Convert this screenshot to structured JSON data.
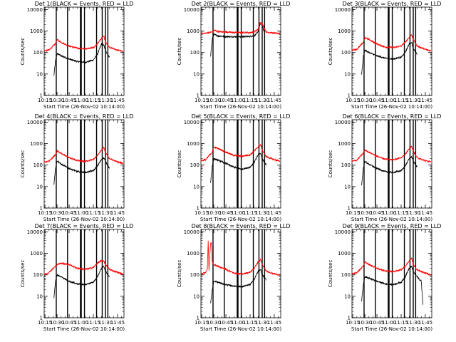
{
  "figure": {
    "xlabel": "Start Time (26-Nov-02 10:14:00)",
    "ylabel": "Counts/sec",
    "x_tick_labels": [
      "10:15",
      "10:30",
      "10:45",
      "11:00",
      "11:15",
      "11:30",
      "11:45"
    ],
    "y_tick_labels": [
      "1",
      "10",
      "100",
      "1000",
      "10000"
    ],
    "colors": {
      "events": "#000000",
      "lld": "#ff0000"
    }
  },
  "chart_data": [
    {
      "type": "line",
      "title": "Det 1(BLACK = Events, RED = LLD",
      "xlabel": "Start Time (26-Nov-02 10:14:00)",
      "ylabel": "Counts/sec",
      "x_range": [
        "10:14",
        "11:53"
      ],
      "ylim": [
        1,
        13000
      ],
      "yscale": "log",
      "series": [
        {
          "color": "#000000",
          "x": [
            "10:26",
            "10:28",
            "10:30",
            "10:35",
            "10:45",
            "10:55",
            "11:05",
            "11:15",
            "11:20",
            "11:25",
            "11:28",
            "11:30",
            "11:35"
          ],
          "values": [
            8,
            40,
            90,
            70,
            50,
            38,
            35,
            45,
            80,
            250,
            220,
            120,
            60
          ]
        },
        {
          "color": "#ff0000",
          "x": [
            "10:14",
            "10:20",
            "10:28",
            "10:30",
            "10:35",
            "10:45",
            "10:55",
            "11:05",
            "11:15",
            "11:20",
            "11:25",
            "11:28",
            "11:30",
            "11:35",
            "11:45",
            "11:52"
          ],
          "values": [
            120,
            130,
            250,
            400,
            300,
            200,
            160,
            150,
            170,
            250,
            450,
            600,
            300,
            170,
            130,
            110
          ]
        }
      ],
      "vertical_lines": [
        "10:29",
        "10:43",
        "10:59",
        "11:00",
        "11:04",
        "11:19",
        "11:26",
        "11:30",
        "11:33"
      ]
    },
    {
      "type": "line",
      "title": "Det 2(BLACK = Events, RED = LLD",
      "xlabel": "Start Time (26-Nov-02 10:14:00)",
      "ylabel": "Counts/sec",
      "x_range": [
        "10:14",
        "11:53"
      ],
      "ylim": [
        1,
        13000
      ],
      "yscale": "log",
      "series": [
        {
          "color": "#000000",
          "x": [
            "10:26",
            "10:28",
            "10:30",
            "10:35",
            "10:45",
            "10:55",
            "11:05",
            "11:15",
            "11:20",
            "11:25",
            "11:27",
            "11:30",
            "11:32"
          ],
          "values": [
            70,
            400,
            700,
            600,
            550,
            550,
            550,
            560,
            600,
            900,
            2000,
            2200,
            1000
          ]
        },
        {
          "color": "#ff0000",
          "x": [
            "10:14",
            "10:20",
            "10:28",
            "10:30",
            "10:35",
            "10:45",
            "10:55",
            "11:05",
            "11:15",
            "11:20",
            "11:25",
            "11:27",
            "11:30",
            "11:35",
            "11:45",
            "11:52"
          ],
          "values": [
            750,
            800,
            900,
            1100,
            950,
            900,
            850,
            850,
            850,
            900,
            1200,
            2400,
            2200,
            900,
            800,
            750
          ]
        }
      ],
      "vertical_lines": [
        "10:29",
        "10:43",
        "10:59",
        "11:00",
        "11:04",
        "11:19",
        "11:26",
        "11:30",
        "11:33"
      ]
    },
    {
      "type": "line",
      "title": "Det 3(BLACK = Events, RED = LLD",
      "xlabel": "Start Time (26-Nov-02 10:14:00)",
      "ylabel": "Counts/sec",
      "x_range": [
        "10:14",
        "11:53"
      ],
      "ylim": [
        1,
        13000
      ],
      "yscale": "log",
      "series": [
        {
          "color": "#000000",
          "x": [
            "10:26",
            "10:28",
            "10:30",
            "10:35",
            "10:45",
            "10:55",
            "11:05",
            "11:15",
            "11:20",
            "11:25",
            "11:28",
            "11:30",
            "11:35"
          ],
          "values": [
            10,
            60,
            130,
            100,
            70,
            55,
            50,
            60,
            100,
            250,
            300,
            150,
            80
          ]
        },
        {
          "color": "#ff0000",
          "x": [
            "10:14",
            "10:20",
            "10:28",
            "10:30",
            "10:35",
            "10:45",
            "10:55",
            "11:05",
            "11:15",
            "11:20",
            "11:25",
            "11:28",
            "11:30",
            "11:35",
            "11:45",
            "11:52"
          ],
          "values": [
            130,
            140,
            300,
            500,
            400,
            250,
            180,
            170,
            200,
            300,
            500,
            700,
            400,
            200,
            140,
            120
          ]
        }
      ],
      "vertical_lines": [
        "10:29",
        "10:43",
        "10:59",
        "11:00",
        "11:04",
        "11:19",
        "11:26",
        "11:30",
        "11:33"
      ]
    },
    {
      "type": "line",
      "title": "Det 4(BLACK = Events, RED = LLD",
      "xlabel": "Start Time (26-Nov-02 10:14:00)",
      "ylabel": "Counts/sec",
      "x_range": [
        "10:14",
        "11:53"
      ],
      "ylim": [
        1,
        13000
      ],
      "yscale": "log",
      "series": [
        {
          "color": "#000000",
          "x": [
            "10:26",
            "10:28",
            "10:30",
            "10:35",
            "10:45",
            "10:55",
            "11:05",
            "11:15",
            "11:20",
            "11:25",
            "11:28",
            "11:30",
            "11:35"
          ],
          "values": [
            12,
            70,
            160,
            110,
            70,
            50,
            45,
            55,
            90,
            180,
            220,
            150,
            70
          ]
        },
        {
          "color": "#ff0000",
          "x": [
            "10:14",
            "10:20",
            "10:28",
            "10:30",
            "10:35",
            "10:45",
            "10:55",
            "11:05",
            "11:15",
            "11:20",
            "11:25",
            "11:28",
            "11:30",
            "11:35",
            "11:45",
            "11:52"
          ],
          "values": [
            140,
            150,
            300,
            450,
            350,
            220,
            160,
            150,
            180,
            280,
            500,
            650,
            400,
            200,
            140,
            120
          ]
        }
      ],
      "vertical_lines": [
        "10:29",
        "10:43",
        "10:59",
        "11:00",
        "11:04",
        "11:19",
        "11:26",
        "11:30",
        "11:33"
      ]
    },
    {
      "type": "line",
      "title": "Det 5(BLACK = Events, RED = LLD",
      "xlabel": "Start Time (26-Nov-02 10:14:00)",
      "ylabel": "Counts/sec",
      "x_range": [
        "10:14",
        "11:53"
      ],
      "ylim": [
        1,
        13000
      ],
      "yscale": "log",
      "series": [
        {
          "color": "#000000",
          "x": [
            "10:26",
            "10:28",
            "10:30",
            "10:35",
            "10:45",
            "10:55",
            "11:05",
            "11:15",
            "11:20",
            "11:25",
            "11:28",
            "11:30",
            "11:35"
          ],
          "values": [
            15,
            90,
            200,
            170,
            120,
            80,
            65,
            80,
            130,
            300,
            350,
            200,
            100
          ]
        },
        {
          "color": "#ff0000",
          "x": [
            "10:14",
            "10:20",
            "10:28",
            "10:30",
            "10:35",
            "10:45",
            "10:55",
            "11:05",
            "11:15",
            "11:20",
            "11:25",
            "11:28",
            "11:30",
            "11:35",
            "11:45",
            "11:52"
          ],
          "values": [
            160,
            180,
            400,
            700,
            600,
            400,
            280,
            260,
            300,
            450,
            700,
            900,
            500,
            250,
            180,
            150
          ]
        }
      ],
      "vertical_lines": [
        "10:29",
        "10:43",
        "10:59",
        "11:00",
        "11:04",
        "11:19",
        "11:26",
        "11:30",
        "11:33"
      ]
    },
    {
      "type": "line",
      "title": "Det 6(BLACK = Events, RED = LLD",
      "xlabel": "Start Time (26-Nov-02 10:14:00)",
      "ylabel": "Counts/sec",
      "x_range": [
        "10:14",
        "11:53"
      ],
      "ylim": [
        1,
        13000
      ],
      "yscale": "log",
      "series": [
        {
          "color": "#000000",
          "x": [
            "10:26",
            "10:28",
            "10:30",
            "10:35",
            "10:45",
            "10:55",
            "11:05",
            "11:15",
            "11:20",
            "11:25",
            "11:28",
            "11:30",
            "11:35"
          ],
          "values": [
            12,
            70,
            150,
            110,
            70,
            50,
            45,
            55,
            90,
            200,
            250,
            150,
            80
          ]
        },
        {
          "color": "#ff0000",
          "x": [
            "10:14",
            "10:20",
            "10:28",
            "10:30",
            "10:35",
            "10:45",
            "10:55",
            "11:05",
            "11:15",
            "11:20",
            "11:25",
            "11:28",
            "11:30",
            "11:35",
            "11:45",
            "11:52"
          ],
          "values": [
            150,
            170,
            350,
            500,
            400,
            260,
            190,
            180,
            220,
            330,
            550,
            750,
            450,
            220,
            160,
            140
          ]
        }
      ],
      "vertical_lines": [
        "10:29",
        "10:43",
        "10:59",
        "11:00",
        "11:04",
        "11:19",
        "11:26",
        "11:30",
        "11:33"
      ]
    },
    {
      "type": "line",
      "title": "Det 7(BLACK = Events, RED = LLD",
      "xlabel": "Start Time (26-Nov-02 10:14:00)",
      "ylabel": "Counts/sec",
      "x_range": [
        "10:14",
        "11:53"
      ],
      "ylim": [
        1,
        13000
      ],
      "yscale": "log",
      "series": [
        {
          "color": "#000000",
          "x": [
            "10:26",
            "10:28",
            "10:30",
            "10:35",
            "10:45",
            "10:55",
            "11:05",
            "11:15",
            "11:20",
            "11:25",
            "11:28",
            "11:30",
            "11:35"
          ],
          "values": [
            8,
            50,
            100,
            80,
            50,
            38,
            35,
            45,
            80,
            200,
            250,
            150,
            80
          ]
        },
        {
          "color": "#ff0000",
          "x": [
            "10:14",
            "10:20",
            "10:28",
            "10:30",
            "10:35",
            "10:45",
            "10:55",
            "11:05",
            "11:15",
            "11:20",
            "11:25",
            "11:28",
            "11:30",
            "11:35",
            "11:45",
            "11:52"
          ],
          "values": [
            100,
            130,
            250,
            300,
            350,
            300,
            200,
            180,
            220,
            350,
            450,
            450,
            300,
            180,
            130,
            110
          ]
        }
      ],
      "vertical_lines": [
        "10:29",
        "10:43",
        "10:59",
        "11:00",
        "11:04",
        "11:19",
        "11:26",
        "11:30",
        "11:33"
      ]
    },
    {
      "type": "line",
      "title": "Det 8(BLACK = Events, RED = LLD",
      "xlabel": "Start Time (26-Nov-02 10:14:00)",
      "ylabel": "Counts/sec",
      "x_range": [
        "10:14",
        "11:53"
      ],
      "ylim": [
        1,
        13000
      ],
      "yscale": "log",
      "series": [
        {
          "color": "#000000",
          "x": [
            "10:26",
            "10:28",
            "10:30",
            "10:35",
            "10:45",
            "10:55",
            "11:05",
            "11:15",
            "11:20",
            "11:25",
            "11:28",
            "11:30",
            "11:35"
          ],
          "values": [
            5,
            20,
            50,
            45,
            35,
            30,
            28,
            35,
            60,
            150,
            180,
            100,
            60
          ]
        },
        {
          "color": "#ff0000",
          "x": [
            "10:14",
            "10:20",
            "10:22",
            "10:23",
            "10:24",
            "10:26",
            "10:27",
            "10:28",
            "10:30",
            "10:35",
            "10:45",
            "10:55",
            "11:05",
            "11:15",
            "11:20",
            "11:25",
            "11:28",
            "11:30",
            "11:35",
            "11:45",
            "11:52"
          ],
          "values": [
            110,
            130,
            200,
            4000,
            150,
            3000,
            3000,
            400,
            300,
            250,
            180,
            120,
            110,
            130,
            200,
            400,
            500,
            300,
            150,
            110,
            100
          ]
        }
      ],
      "vertical_lines": [
        "10:29",
        "10:43",
        "10:59",
        "11:00",
        "11:04",
        "11:19",
        "11:26",
        "11:30",
        "11:33"
      ]
    },
    {
      "type": "line",
      "title": "Det 9(BLACK = Events, RED = LLD",
      "xlabel": "Start Time (26-Nov-02 10:14:00)",
      "ylabel": "Counts/sec",
      "x_range": [
        "10:14",
        "11:53"
      ],
      "ylim": [
        1,
        13000
      ],
      "yscale": "log",
      "series": [
        {
          "color": "#000000",
          "x": [
            "10:26",
            "10:28",
            "10:30",
            "10:35",
            "10:45",
            "10:55",
            "11:05",
            "11:15",
            "11:20",
            "11:25",
            "11:28",
            "11:30",
            "11:35",
            "11:40",
            "11:42"
          ],
          "values": [
            6,
            35,
            80,
            70,
            50,
            38,
            35,
            45,
            80,
            200,
            250,
            140,
            80,
            50,
            4
          ]
        },
        {
          "color": "#ff0000",
          "x": [
            "10:14",
            "10:20",
            "10:28",
            "10:30",
            "10:35",
            "10:45",
            "10:55",
            "11:05",
            "11:15",
            "11:20",
            "11:25",
            "11:28",
            "11:30",
            "11:35",
            "11:45",
            "11:52"
          ],
          "values": [
            110,
            130,
            250,
            400,
            300,
            200,
            150,
            140,
            170,
            250,
            450,
            600,
            300,
            170,
            120,
            100
          ]
        }
      ],
      "vertical_lines": [
        "10:29",
        "10:43",
        "10:59",
        "11:00",
        "11:04",
        "11:19",
        "11:26",
        "11:30",
        "11:33"
      ]
    }
  ]
}
